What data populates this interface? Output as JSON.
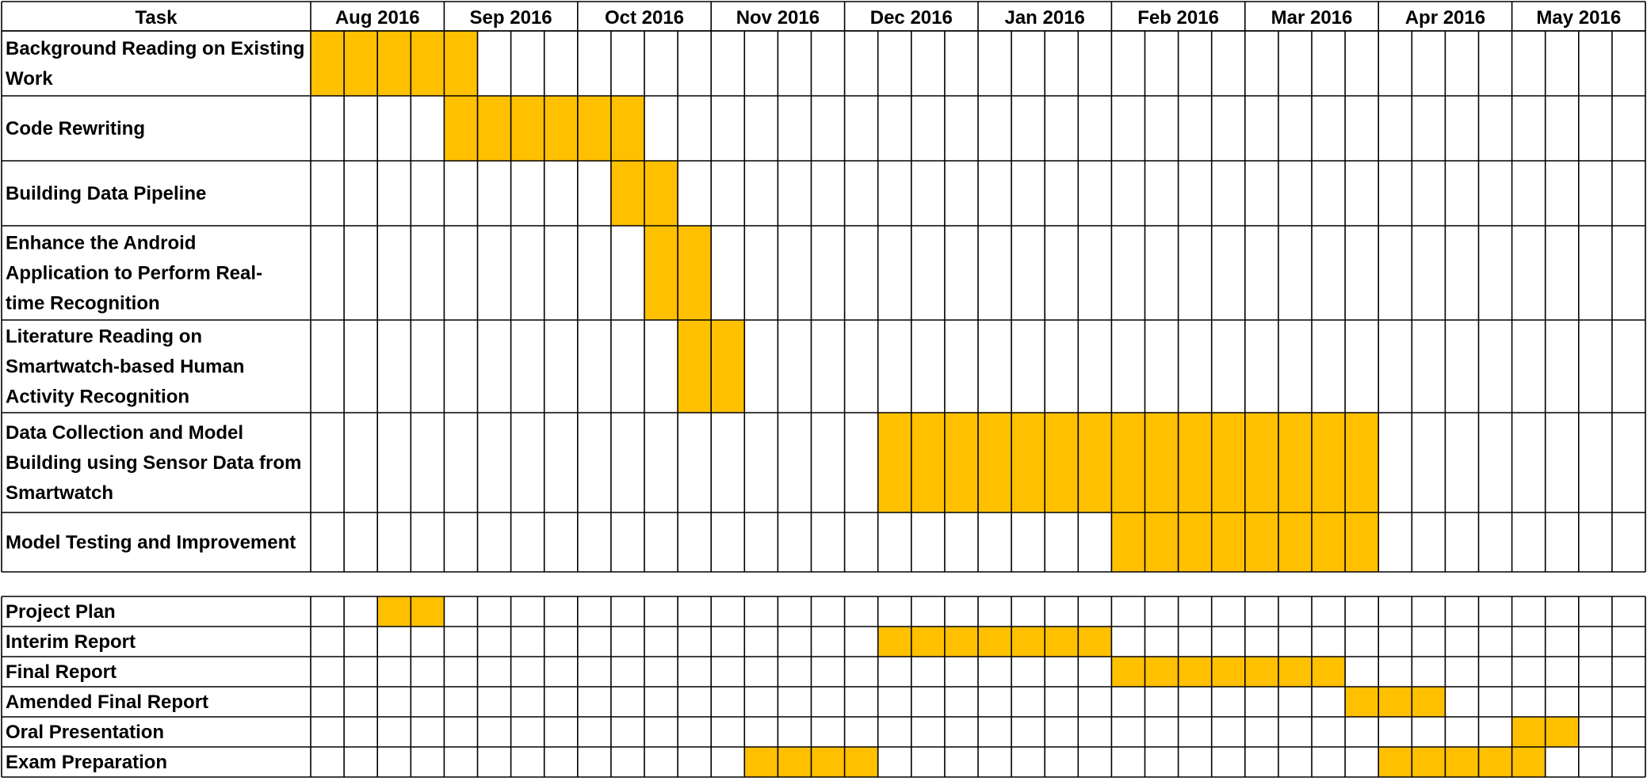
{
  "chart_data": {
    "type": "gantt",
    "header_label": "Task",
    "months": [
      "Aug 2016",
      "Sep 2016",
      "Oct 2016",
      "Nov 2016",
      "Dec 2016",
      "Jan 2016",
      "Feb 2016",
      "Mar 2016",
      "Apr 2016",
      "May 2016"
    ],
    "fill_color": "#FFC000",
    "grid_color": "#000000",
    "groups": [
      {
        "tasks": [
          {
            "label": [
              "Background Reading on Existing",
              "Work"
            ],
            "start": 0,
            "end": 5
          },
          {
            "label": [
              "Code Rewriting"
            ],
            "start": 4,
            "end": 10
          },
          {
            "label": [
              "Building Data Pipeline"
            ],
            "start": 9,
            "end": 11
          },
          {
            "label": [
              "Enhance the Android",
              "Application to Perform Real-",
              "time Recognition"
            ],
            "start": 10,
            "end": 12
          },
          {
            "label": [
              "Literature Reading on",
              "Smartwatch-based Human",
              "Activity Recognition"
            ],
            "start": 11,
            "end": 13
          },
          {
            "label": [
              "Data Collection and Model",
              "Building using Sensor Data from",
              "Smartwatch"
            ],
            "start": 17,
            "end": 32
          },
          {
            "label": [
              "Model Testing and Improvement"
            ],
            "start": 24,
            "end": 32
          }
        ]
      },
      {
        "tasks": [
          {
            "label": [
              "Project Plan"
            ],
            "start": 2,
            "end": 4
          },
          {
            "label": [
              "Interim Report"
            ],
            "start": 17,
            "end": 24
          },
          {
            "label": [
              "Final Report"
            ],
            "start": 24,
            "end": 31
          },
          {
            "label": [
              "Amended Final Report"
            ],
            "start": 31,
            "end": 34
          },
          {
            "label": [
              "Oral Presentation"
            ],
            "start": 36,
            "end": 38
          },
          {
            "label": [
              "Exam Preparation"
            ],
            "start": 13,
            "end": 17,
            "start2": 32,
            "end2": 37
          }
        ]
      }
    ]
  }
}
